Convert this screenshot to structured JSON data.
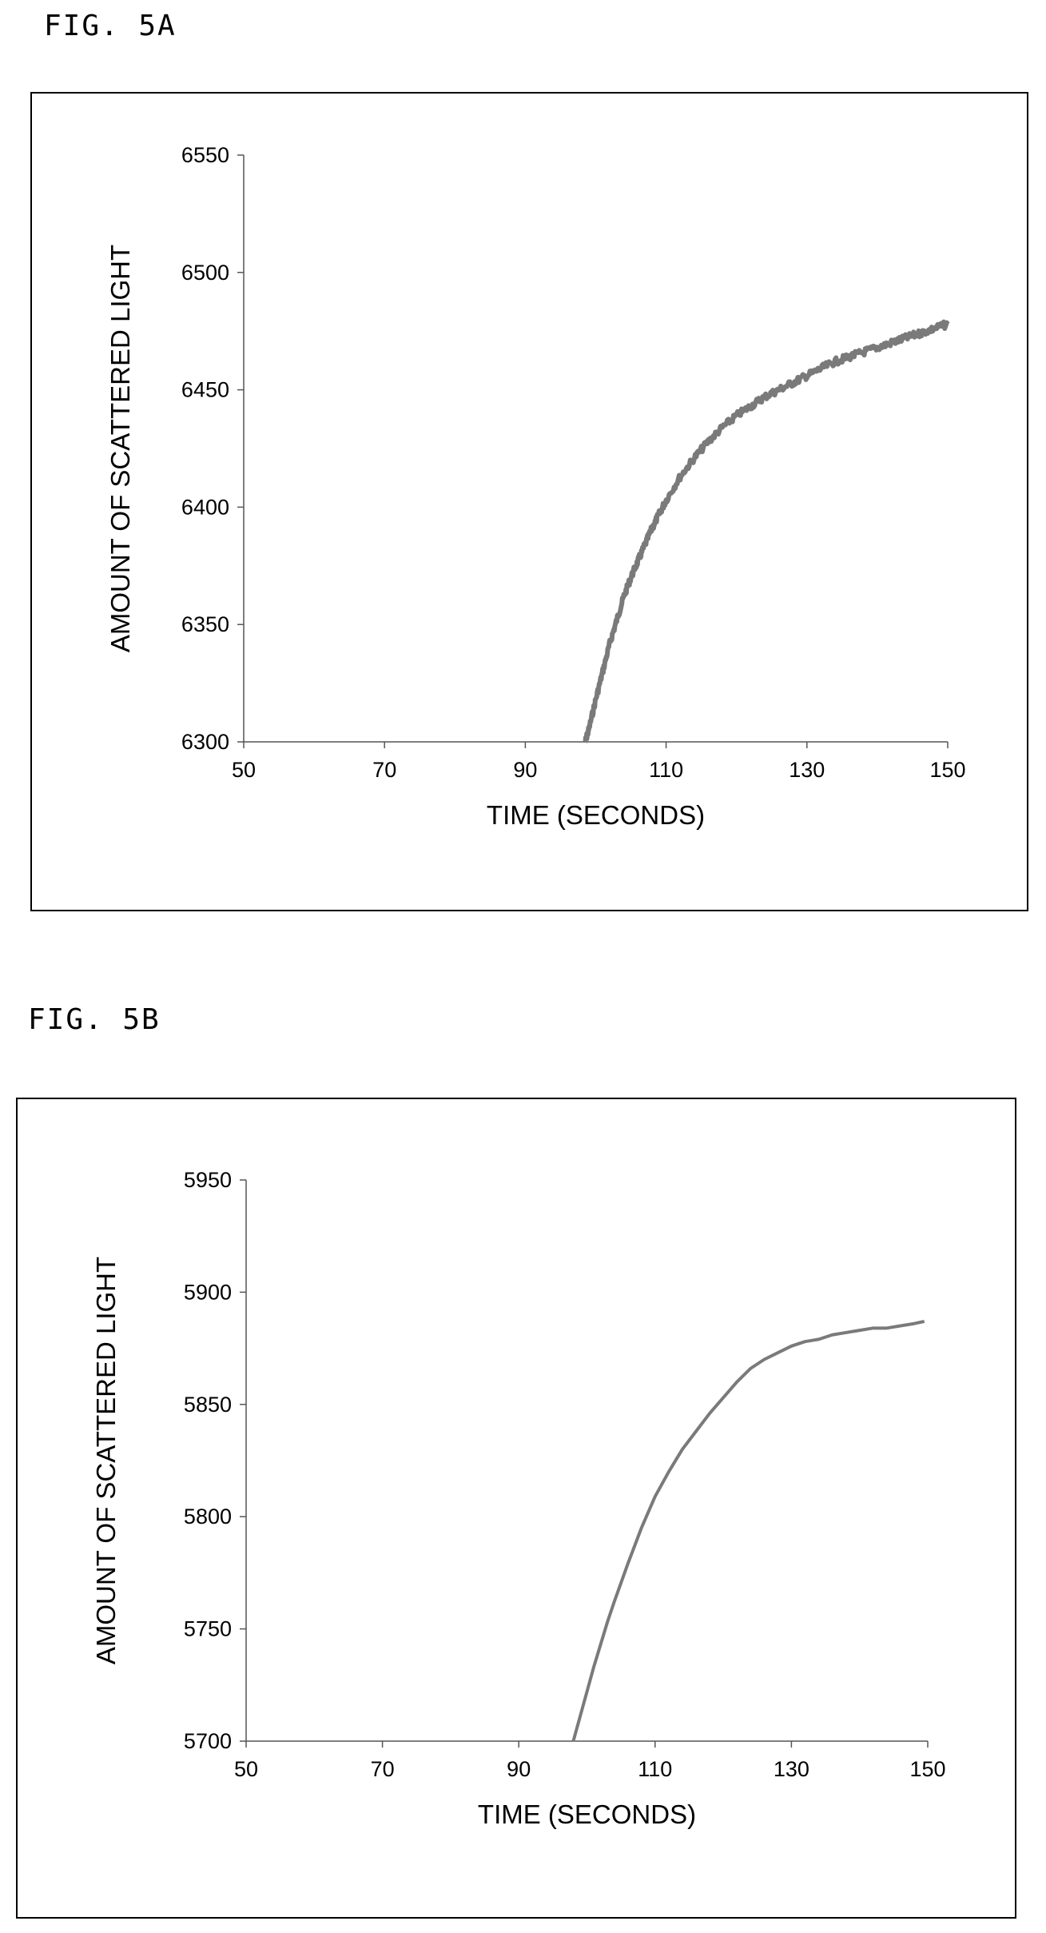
{
  "figures": [
    {
      "label": "FIG. 5A"
    },
    {
      "label": "FIG. 5B"
    }
  ],
  "chart_data": [
    {
      "type": "line",
      "xlabel": "TIME (SECONDS)",
      "ylabel": "AMOUNT OF SCATTERED LIGHT",
      "xlim": [
        50,
        150
      ],
      "ylim": [
        6300,
        6550
      ],
      "xticks": [
        50,
        70,
        90,
        110,
        130,
        150
      ],
      "yticks": [
        6300,
        6350,
        6400,
        6450,
        6500,
        6550
      ],
      "grid": false,
      "line_color": "#7a7a7a",
      "noisy": true,
      "series": [
        {
          "x": [
            98.5,
            99,
            100,
            101,
            102,
            103,
            104,
            105,
            106,
            107,
            108,
            109,
            110,
            112,
            114,
            116,
            118,
            120,
            122,
            124,
            126,
            128,
            130,
            132,
            134,
            136,
            138,
            140,
            142,
            144,
            146,
            148,
            150
          ],
          "values": [
            6300,
            6305,
            6318,
            6330,
            6342,
            6352,
            6362,
            6370,
            6377,
            6384,
            6391,
            6397,
            6403,
            6413,
            6421,
            6428,
            6434,
            6439,
            6443,
            6447,
            6450,
            6453,
            6456,
            6459,
            6462,
            6464,
            6466,
            6468,
            6470,
            6472,
            6474,
            6476,
            6478
          ]
        }
      ]
    },
    {
      "type": "line",
      "xlabel": "TIME (SECONDS)",
      "ylabel": "AMOUNT OF SCATTERED LIGHT",
      "xlim": [
        50,
        150
      ],
      "ylim": [
        5700,
        5950
      ],
      "xticks": [
        50,
        70,
        90,
        110,
        130,
        150
      ],
      "yticks": [
        5700,
        5750,
        5800,
        5850,
        5900,
        5950
      ],
      "grid": false,
      "line_color": "#7a7a7a",
      "noisy": false,
      "series": [
        {
          "x": [
            98,
            99,
            100,
            101,
            102,
            103,
            104,
            106,
            108,
            110,
            112,
            114,
            116,
            118,
            120,
            122,
            124,
            126,
            128,
            130,
            132,
            134,
            136,
            138,
            140,
            142,
            144,
            146,
            148,
            149.5
          ],
          "values": [
            5700,
            5711,
            5722,
            5733,
            5743,
            5753,
            5762,
            5779,
            5795,
            5809,
            5820,
            5830,
            5838,
            5846,
            5853,
            5860,
            5866,
            5870,
            5873,
            5876,
            5878,
            5879,
            5881,
            5882,
            5883,
            5884,
            5884,
            5885,
            5886,
            5887
          ]
        }
      ]
    }
  ]
}
